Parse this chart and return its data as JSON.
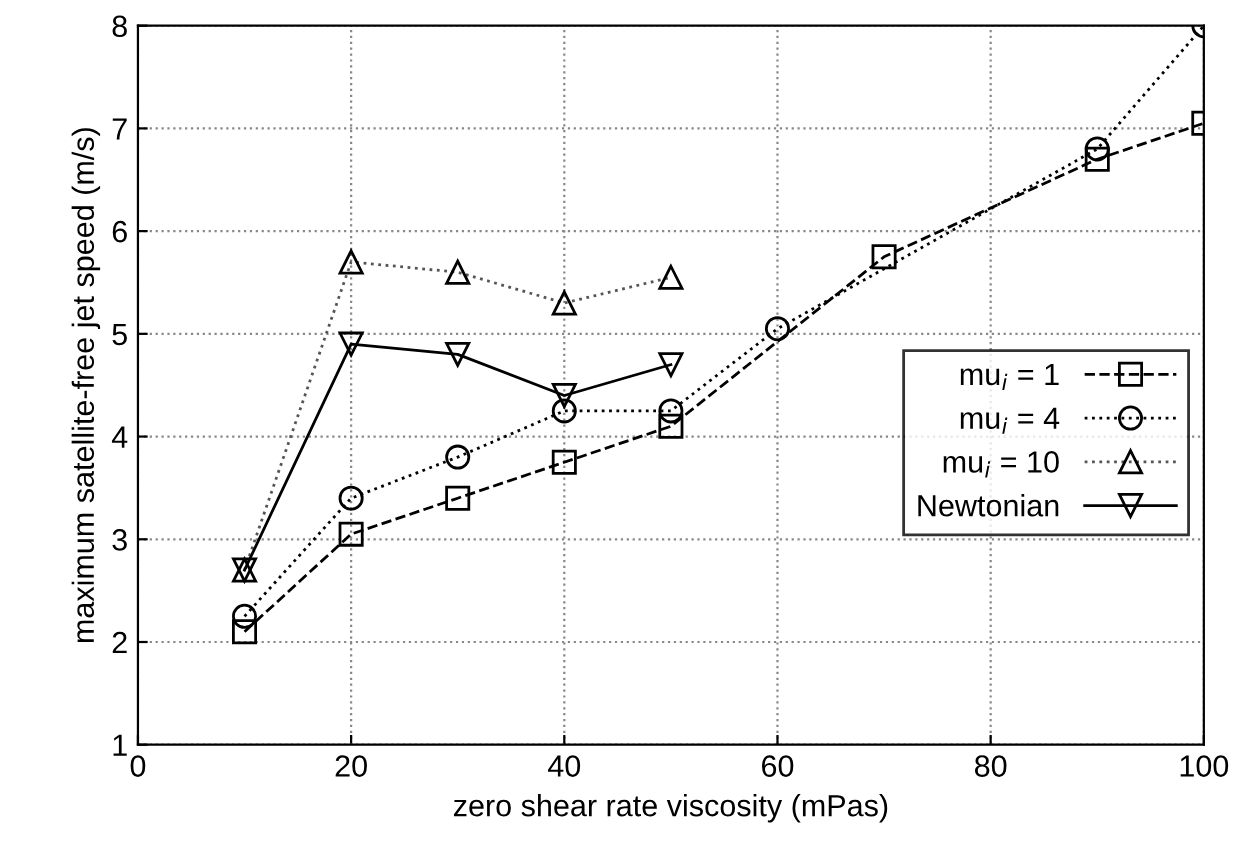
{
  "chart_data": {
    "type": "line",
    "xlabel": "zero shear rate viscosity (mPas)",
    "ylabel": "maximum satellite-free jet speed (m/s)",
    "xlim": [
      0,
      100
    ],
    "xticks": [
      0,
      20,
      40,
      60,
      80,
      100
    ],
    "ylim": [
      1,
      8
    ],
    "yticks": [
      1,
      2,
      3,
      4,
      5,
      6,
      7,
      8
    ],
    "grid": true,
    "legend": "right",
    "series": [
      {
        "name": "mu$_{i}$ = 1",
        "color": "#000000",
        "marker": "square",
        "line_style": "dashed",
        "x": [
          10,
          20,
          30,
          40,
          50,
          70,
          90,
          100
        ],
        "values": [
          2.1,
          3.05,
          3.4,
          3.75,
          4.1,
          5.75,
          6.7,
          7.05
        ]
      },
      {
        "name": "mu$_{i}$ = 4",
        "color": "#000000",
        "marker": "circle",
        "line_style": "dotted",
        "x": [
          10,
          20,
          30,
          40,
          50,
          60,
          90,
          100
        ],
        "values": [
          2.25,
          3.4,
          3.8,
          4.25,
          4.25,
          5.05,
          6.8,
          8.0
        ]
      },
      {
        "name": "mu$_{i}$ = 10",
        "color": "#555555",
        "marker": "triangle",
        "line_style": "dotted",
        "x": [
          10,
          20,
          30,
          40,
          50
        ],
        "values": [
          2.7,
          5.7,
          5.6,
          5.3,
          5.55
        ]
      },
      {
        "name": "Newtonian",
        "color": "#000000",
        "marker": "triangle_down",
        "line_style": "solid",
        "x": [
          10,
          20,
          30,
          40,
          50
        ],
        "values": [
          2.7,
          4.9,
          4.8,
          4.4,
          4.7
        ]
      }
    ]
  }
}
